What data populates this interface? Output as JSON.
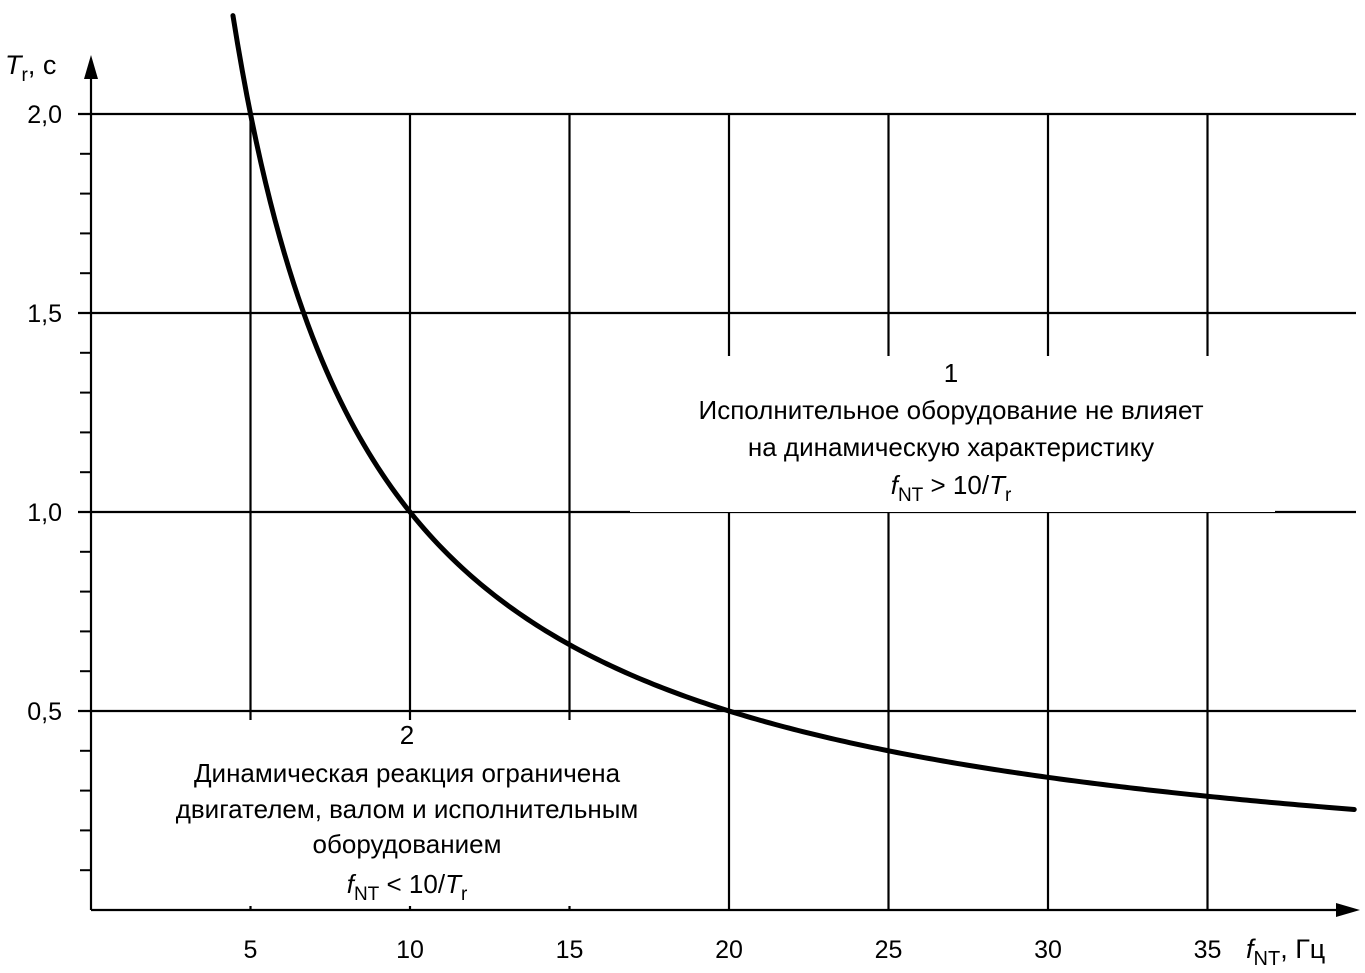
{
  "chart_data": {
    "type": "line",
    "equation": "Tr = 10 / fNT",
    "x_ticks": [
      5,
      10,
      15,
      20,
      25,
      30,
      35
    ],
    "x_tick_labels": [
      "5",
      "10",
      "15",
      "20",
      "25",
      "30",
      "35"
    ],
    "y_major_ticks": [
      0.5,
      1.0,
      1.5,
      2.0
    ],
    "y_tick_labels": [
      "0,5",
      "1,0",
      "1,5",
      "2,0"
    ],
    "y_minor_step": 0.1,
    "xlim": [
      0,
      39.6
    ],
    "ylim": [
      0,
      2.0
    ],
    "grid": true,
    "xlabel": {
      "main": "f",
      "sub": "NT",
      "unit": ", Гц"
    },
    "ylabel": {
      "main": "T",
      "sub": "r",
      "unit": ", с"
    },
    "series": [
      {
        "x": [
          4.45,
          5,
          6,
          7,
          8,
          9,
          10,
          12,
          14,
          16,
          18,
          20,
          22,
          25,
          28,
          30,
          33,
          35,
          38,
          39.6
        ],
        "y": [
          2.25,
          2.0,
          1.667,
          1.429,
          1.25,
          1.111,
          1.0,
          0.833,
          0.714,
          0.625,
          0.556,
          0.5,
          0.455,
          0.4,
          0.357,
          0.333,
          0.303,
          0.286,
          0.263,
          0.253
        ]
      }
    ],
    "annotations": [
      {
        "id": "region-1",
        "number": "1",
        "lines": [
          "Исполнительное оборудование не влияет",
          "на динамическую характеристику"
        ],
        "condition": {
          "f": "f",
          "sub": "NT",
          "rel": " > 10/",
          "T": "T",
          "tsub": "r"
        }
      },
      {
        "id": "region-2",
        "number": "2",
        "lines": [
          "Динамическая реакция ограничена",
          "двигателем, валом и исполнительным",
          "оборудованием"
        ],
        "condition": {
          "f": "f",
          "sub": "NT",
          "rel": " < 10/",
          "T": "T",
          "tsub": "r"
        }
      }
    ]
  }
}
